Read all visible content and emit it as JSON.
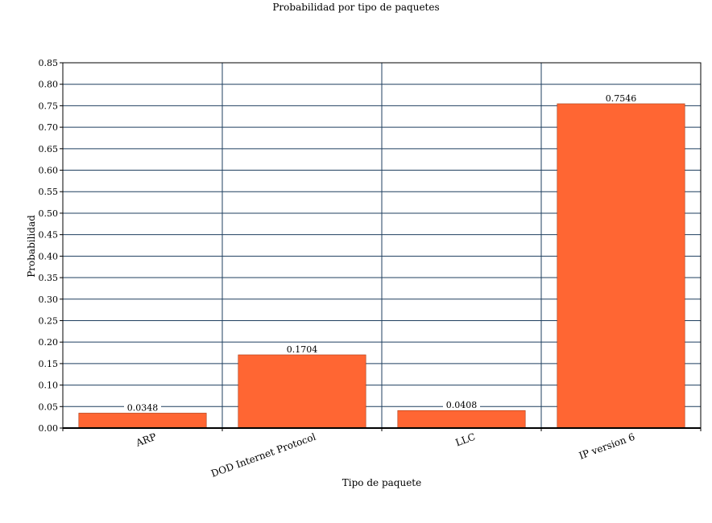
{
  "chart_data": {
    "type": "bar",
    "title": "Probabilidad por tipo de paquetes",
    "xlabel": "Tipo de paquete",
    "ylabel": "Probabilidad",
    "categories": [
      "ARP",
      "DOD Internet Protocol",
      "LLC",
      "IP version 6"
    ],
    "values": [
      0.0348,
      0.1704,
      0.0408,
      0.7546
    ],
    "value_labels": [
      "0.0348",
      "0.1704",
      "0.0408",
      "0.7546"
    ],
    "ylim": [
      0,
      0.85
    ],
    "y_ticks": [
      "0.00",
      "0.05",
      "0.10",
      "0.15",
      "0.20",
      "0.25",
      "0.30",
      "0.35",
      "0.40",
      "0.45",
      "0.50",
      "0.55",
      "0.60",
      "0.65",
      "0.70",
      "0.75",
      "0.80",
      "0.85"
    ],
    "grid": true,
    "legend": "none",
    "colors": {
      "bar": "#ff6633",
      "bar_stroke": "#a83b14",
      "grid": "#1f3f5f",
      "axis": "#000000"
    }
  }
}
